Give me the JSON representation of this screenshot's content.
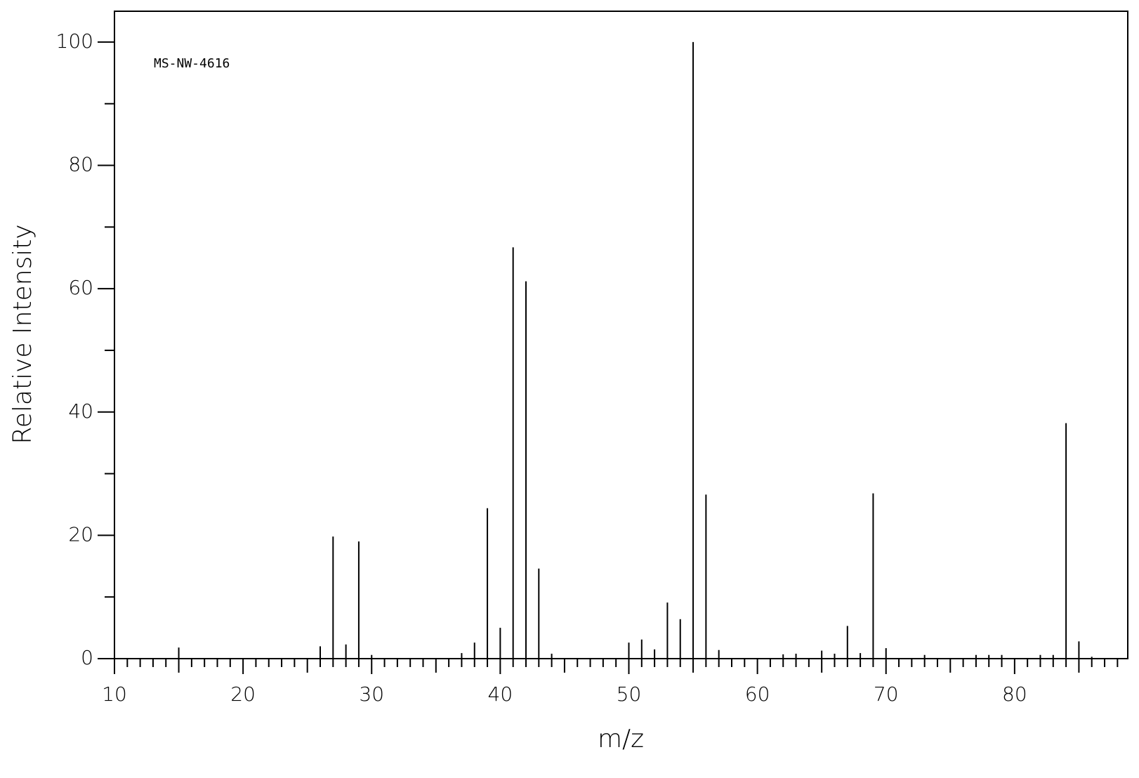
{
  "chart_data": {
    "type": "spectrum",
    "annotation": "MS-NW-4616",
    "x_label": "m/z",
    "y_label": "Relative Intensity",
    "color": "#000000",
    "xlim": [
      10,
      88.8
    ],
    "ylim": [
      0,
      105
    ],
    "xticks": [
      10,
      20,
      30,
      40,
      50,
      60,
      70,
      80
    ],
    "yticks": [
      0,
      20,
      40,
      60,
      80,
      100
    ],
    "xminorticks": [
      11,
      12,
      13,
      14,
      15,
      16,
      17,
      18,
      19,
      21,
      22,
      23,
      24,
      25,
      26,
      27,
      28,
      29,
      31,
      32,
      33,
      34,
      35,
      36,
      37,
      38,
      39,
      41,
      42,
      43,
      44,
      45,
      46,
      47,
      48,
      49,
      51,
      52,
      53,
      54,
      55,
      56,
      57,
      58,
      59,
      61,
      62,
      63,
      64,
      65,
      66,
      67,
      68,
      69,
      71,
      72,
      73,
      74,
      75,
      76,
      77,
      78,
      79,
      81,
      82,
      83,
      84,
      85,
      86,
      87,
      88
    ],
    "yminorticks": [
      10,
      30,
      50,
      70,
      90
    ],
    "x": [
      15,
      26,
      27,
      28,
      29,
      30,
      37,
      38,
      39,
      40,
      41,
      42,
      43,
      44,
      50,
      51,
      52,
      53,
      54,
      55,
      56,
      57,
      62,
      63,
      65,
      66,
      67,
      68,
      69,
      70,
      73,
      77,
      78,
      79,
      82,
      83,
      84,
      85,
      86
    ],
    "values": [
      1.8,
      2,
      19.8,
      2.3,
      19,
      0.6,
      0.9,
      2.6,
      24.4,
      5,
      66.7,
      61.2,
      14.6,
      0.8,
      2.6,
      3.1,
      1.5,
      9.1,
      6.4,
      100,
      26.6,
      1.4,
      0.7,
      0.8,
      1.3,
      0.8,
      5.3,
      0.9,
      26.8,
      1.7,
      0.6,
      0.6,
      0.6,
      0.6,
      0.6,
      0.6,
      38.2,
      2.8,
      0.3
    ]
  }
}
